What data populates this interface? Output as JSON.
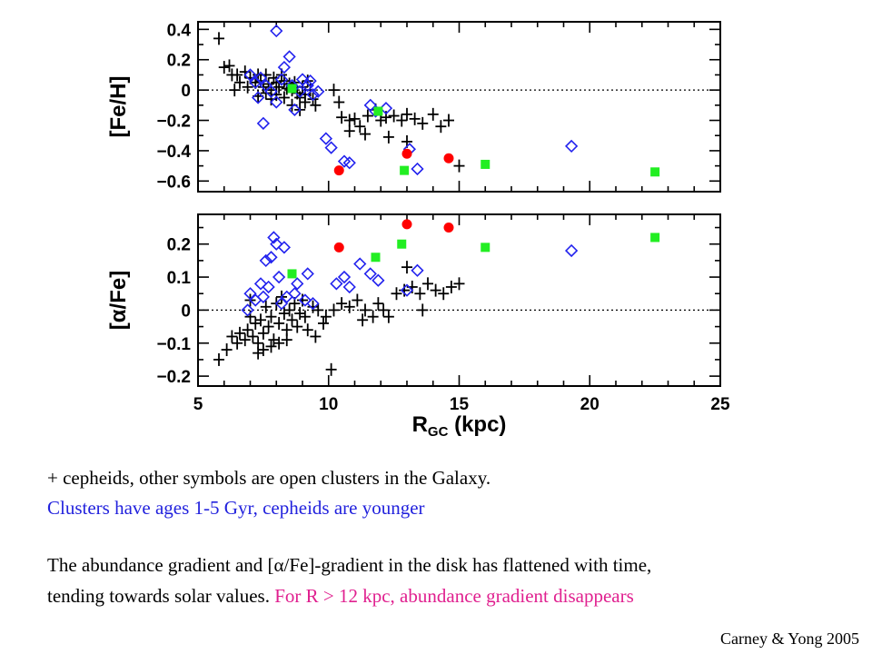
{
  "chart_data": [
    {
      "type": "scatter",
      "panel": "top",
      "ylabel": "[Fe/H]",
      "xlim": [
        5,
        25
      ],
      "ylim": [
        -0.67,
        0.45
      ],
      "y_ticks": [
        0.4,
        0.2,
        0,
        -0.2,
        -0.4,
        -0.6
      ],
      "y_tick_labels": [
        "0.4",
        "0.2",
        "0",
        "−0.2",
        "−0.4",
        "−0.6"
      ],
      "reference_line_y": 0,
      "series": [
        {
          "marker": "plus",
          "color": "#000000",
          "points": [
            [
              5.8,
              0.34
            ],
            [
              6.0,
              0.15
            ],
            [
              6.2,
              0.16
            ],
            [
              6.3,
              0.1
            ],
            [
              6.5,
              0.1
            ],
            [
              6.6,
              0.05
            ],
            [
              6.8,
              0.12
            ],
            [
              6.4,
              0.0
            ],
            [
              6.9,
              0.02
            ],
            [
              7.0,
              0.08
            ],
            [
              7.2,
              0.05
            ],
            [
              7.3,
              0.1
            ],
            [
              7.4,
              0.06
            ],
            [
              7.5,
              0.02
            ],
            [
              7.6,
              0.1
            ],
            [
              7.7,
              0.04
            ],
            [
              7.8,
              0.0
            ],
            [
              7.9,
              0.08
            ],
            [
              8.0,
              0.05
            ],
            [
              8.1,
              0.02
            ],
            [
              8.2,
              0.1
            ],
            [
              8.3,
              0.06
            ],
            [
              8.4,
              0.01
            ],
            [
              8.5,
              0.04
            ],
            [
              8.6,
              0.0
            ],
            [
              8.7,
              0.05
            ],
            [
              8.8,
              -0.02
            ],
            [
              8.9,
              -0.05
            ],
            [
              9.0,
              0.02
            ],
            [
              9.1,
              -0.03
            ],
            [
              9.2,
              0.06
            ],
            [
              9.3,
              0.0
            ],
            [
              9.4,
              -0.06
            ],
            [
              9.5,
              -0.1
            ],
            [
              7.3,
              -0.04
            ],
            [
              7.6,
              -0.02
            ],
            [
              7.8,
              -0.06
            ],
            [
              8.0,
              -0.03
            ],
            [
              8.3,
              -0.05
            ],
            [
              8.6,
              -0.1
            ],
            [
              8.9,
              -0.13
            ],
            [
              9.1,
              -0.08
            ],
            [
              10.2,
              0.0
            ],
            [
              10.4,
              -0.08
            ],
            [
              10.5,
              -0.18
            ],
            [
              10.8,
              -0.2
            ],
            [
              11.0,
              -0.19
            ],
            [
              11.2,
              -0.24
            ],
            [
              11.5,
              -0.17
            ],
            [
              11.8,
              -0.13
            ],
            [
              12.0,
              -0.2
            ],
            [
              12.2,
              -0.18
            ],
            [
              12.5,
              -0.17
            ],
            [
              12.8,
              -0.2
            ],
            [
              13.0,
              -0.16
            ],
            [
              13.3,
              -0.19
            ],
            [
              13.6,
              -0.22
            ],
            [
              14.0,
              -0.16
            ],
            [
              14.3,
              -0.24
            ],
            [
              14.6,
              -0.2
            ],
            [
              10.8,
              -0.27
            ],
            [
              11.4,
              -0.29
            ],
            [
              12.3,
              -0.31
            ],
            [
              13.0,
              -0.34
            ],
            [
              15.0,
              -0.5
            ]
          ]
        },
        {
          "marker": "open-diamond",
          "color": "#2222ee",
          "points": [
            [
              8.0,
              0.39
            ],
            [
              8.5,
              0.22
            ],
            [
              8.3,
              0.15
            ],
            [
              7.0,
              0.1
            ],
            [
              7.2,
              0.05
            ],
            [
              7.4,
              0.08
            ],
            [
              7.6,
              0.03
            ],
            [
              7.8,
              -0.01
            ],
            [
              8.2,
              0.07
            ],
            [
              8.6,
              0.03
            ],
            [
              8.9,
              -0.01
            ],
            [
              9.0,
              0.07
            ],
            [
              9.2,
              0.03
            ],
            [
              9.4,
              -0.03
            ],
            [
              9.6,
              -0.01
            ],
            [
              9.3,
              0.06
            ],
            [
              7.3,
              -0.05
            ],
            [
              7.5,
              -0.22
            ],
            [
              8.0,
              -0.08
            ],
            [
              8.7,
              -0.13
            ],
            [
              9.9,
              -0.32
            ],
            [
              10.1,
              -0.38
            ],
            [
              10.6,
              -0.47
            ],
            [
              10.8,
              -0.48
            ],
            [
              11.6,
              -0.1
            ],
            [
              11.8,
              -0.14
            ],
            [
              12.2,
              -0.12
            ],
            [
              13.1,
              -0.39
            ],
            [
              13.4,
              -0.52
            ],
            [
              19.3,
              -0.37
            ]
          ]
        },
        {
          "marker": "filled-circle",
          "color": "#ff0000",
          "points": [
            [
              10.4,
              -0.53
            ],
            [
              13.0,
              -0.42
            ],
            [
              14.6,
              -0.45
            ]
          ]
        },
        {
          "marker": "filled-square",
          "color": "#22ee22",
          "points": [
            [
              8.6,
              0.01
            ],
            [
              11.9,
              -0.14
            ],
            [
              12.9,
              -0.53
            ],
            [
              16.0,
              -0.49
            ],
            [
              22.5,
              -0.54
            ]
          ]
        }
      ]
    },
    {
      "type": "scatter",
      "panel": "bottom",
      "ylabel": "[α/Fe]",
      "xlabel_main": "R",
      "xlabel_sub": "GC",
      "xlabel_unit": "(kpc)",
      "xlim": [
        5,
        25
      ],
      "ylim": [
        -0.23,
        0.29
      ],
      "x_ticks": [
        5,
        10,
        15,
        20,
        25
      ],
      "x_tick_labels": [
        "5",
        "10",
        "15",
        "20",
        "25"
      ],
      "y_ticks": [
        0.2,
        0.1,
        0,
        -0.1,
        -0.2
      ],
      "y_tick_labels": [
        "0.2",
        "0.1",
        "0",
        "−0.1",
        "−0.2"
      ],
      "reference_line_y": 0,
      "series": [
        {
          "marker": "plus",
          "color": "#000000",
          "points": [
            [
              5.8,
              -0.15
            ],
            [
              6.1,
              -0.12
            ],
            [
              6.3,
              -0.08
            ],
            [
              6.5,
              -0.1
            ],
            [
              6.6,
              -0.07
            ],
            [
              6.8,
              -0.09
            ],
            [
              6.9,
              -0.06
            ],
            [
              7.0,
              -0.02
            ],
            [
              7.1,
              -0.08
            ],
            [
              7.2,
              -0.04
            ],
            [
              7.3,
              -0.13
            ],
            [
              7.4,
              -0.03
            ],
            [
              7.5,
              -0.07
            ],
            [
              7.6,
              0.01
            ],
            [
              7.7,
              -0.05
            ],
            [
              7.8,
              -0.02
            ],
            [
              7.9,
              -0.09
            ],
            [
              8.0,
              0.02
            ],
            [
              8.1,
              -0.04
            ],
            [
              8.2,
              0.04
            ],
            [
              8.3,
              -0.01
            ],
            [
              8.4,
              -0.06
            ],
            [
              8.5,
              0.0
            ],
            [
              8.6,
              -0.03
            ],
            [
              8.7,
              0.02
            ],
            [
              8.8,
              -0.05
            ],
            [
              8.9,
              -0.01
            ],
            [
              9.0,
              0.03
            ],
            [
              9.1,
              -0.02
            ],
            [
              9.2,
              -0.06
            ],
            [
              9.4,
              0.01
            ],
            [
              9.5,
              -0.08
            ],
            [
              9.6,
              0.0
            ],
            [
              7.3,
              -0.1
            ],
            [
              7.5,
              -0.12
            ],
            [
              7.8,
              -0.11
            ],
            [
              8.1,
              -0.1
            ],
            [
              8.4,
              -0.09
            ],
            [
              7.0,
              0.03
            ],
            [
              9.9,
              -0.02
            ],
            [
              10.2,
              0.0
            ],
            [
              10.5,
              0.02
            ],
            [
              10.8,
              0.01
            ],
            [
              11.1,
              0.03
            ],
            [
              11.4,
              0.0
            ],
            [
              11.7,
              -0.02
            ],
            [
              11.9,
              0.02
            ],
            [
              12.1,
              0.0
            ],
            [
              12.3,
              -0.02
            ],
            [
              12.6,
              0.05
            ],
            [
              12.9,
              0.06
            ],
            [
              13.2,
              0.07
            ],
            [
              13.5,
              0.05
            ],
            [
              13.8,
              0.08
            ],
            [
              14.1,
              0.06
            ],
            [
              14.4,
              0.05
            ],
            [
              14.7,
              0.07
            ],
            [
              15.0,
              0.08
            ],
            [
              13.0,
              0.13
            ],
            [
              13.6,
              0.0
            ],
            [
              11.3,
              -0.03
            ],
            [
              10.1,
              -0.18
            ],
            [
              9.8,
              -0.04
            ]
          ]
        },
        {
          "marker": "open-diamond",
          "color": "#2222ee",
          "points": [
            [
              7.9,
              0.22
            ],
            [
              8.0,
              0.2
            ],
            [
              8.3,
              0.19
            ],
            [
              7.8,
              0.16
            ],
            [
              7.6,
              0.15
            ],
            [
              8.1,
              0.1
            ],
            [
              7.7,
              0.07
            ],
            [
              7.5,
              0.04
            ],
            [
              8.4,
              0.04
            ],
            [
              8.7,
              0.05
            ],
            [
              9.1,
              0.03
            ],
            [
              9.4,
              0.02
            ],
            [
              7.0,
              0.05
            ],
            [
              7.4,
              0.08
            ],
            [
              8.8,
              0.08
            ],
            [
              9.2,
              0.11
            ],
            [
              6.9,
              0.0
            ],
            [
              7.2,
              0.03
            ],
            [
              8.2,
              0.02
            ],
            [
              10.3,
              0.08
            ],
            [
              10.6,
              0.1
            ],
            [
              10.8,
              0.07
            ],
            [
              11.2,
              0.14
            ],
            [
              11.6,
              0.11
            ],
            [
              11.9,
              0.09
            ],
            [
              13.0,
              0.06
            ],
            [
              13.4,
              0.12
            ],
            [
              19.3,
              0.18
            ]
          ]
        },
        {
          "marker": "filled-circle",
          "color": "#ff0000",
          "points": [
            [
              10.4,
              0.19
            ],
            [
              13.0,
              0.26
            ],
            [
              14.6,
              0.25
            ]
          ]
        },
        {
          "marker": "filled-square",
          "color": "#22ee22",
          "points": [
            [
              8.6,
              0.11
            ],
            [
              11.8,
              0.16
            ],
            [
              12.8,
              0.2
            ],
            [
              16.0,
              0.19
            ],
            [
              22.5,
              0.22
            ]
          ]
        }
      ]
    }
  ],
  "caption": {
    "line1": "+ cepheids,  other symbols are open clusters in the Galaxy.",
    "line2": "Clusters have ages 1-5 Gyr, cepheids are younger",
    "line3": "The abundance gradient and [α/Fe]-gradient in the disk has flattened with time,",
    "line4_main": "tending towards solar values. ",
    "line4_highlight": "For R > 12 kpc, abundance gradient disappears"
  },
  "credit": "Carney & Yong 2005",
  "colors": {
    "cepheid": "#000000",
    "cluster_diamond": "#2222ee",
    "cluster_circle": "#ff0000",
    "cluster_square": "#22ee22",
    "caption_blue": "#2222dd",
    "caption_pink": "#e0208f"
  }
}
